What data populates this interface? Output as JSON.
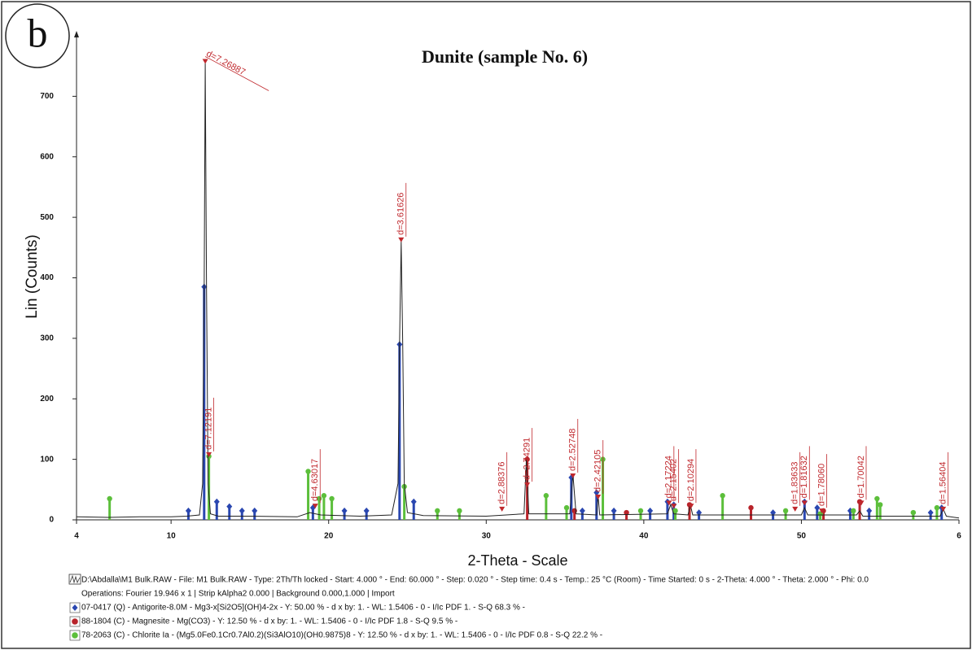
{
  "chart_data": {
    "type": "xrd",
    "panel_label": "b",
    "title": "Dunite (sample No. 6)",
    "x_label": "2-Theta - Scale",
    "y_label": "Lin (Counts)",
    "xlim": [
      4,
      60
    ],
    "ylim": [
      0,
      800
    ],
    "xticks": [
      4,
      10,
      20,
      30,
      40,
      50,
      {
        "value": 60,
        "label": "6"
      }
    ],
    "yticks": [
      0,
      100,
      200,
      300,
      400,
      500,
      600,
      700
    ],
    "pattern": {
      "color": "#222222",
      "x": [
        4,
        6,
        8,
        10,
        11,
        11.8,
        12.0,
        12.1,
        12.17,
        12.25,
        12.35,
        12.5,
        13,
        15,
        18,
        18.8,
        19.5,
        22,
        24,
        24.4,
        24.5,
        24.6,
        24.7,
        24.8,
        25,
        26,
        30,
        32.4,
        32.55,
        32.7,
        35.3,
        35.5,
        35.7,
        37.0,
        37.1,
        37.2,
        41.5,
        41.7,
        41.9,
        42.8,
        42.95,
        43.1,
        50.0,
        50.2,
        50.4,
        53.5,
        53.7,
        53.9,
        58.8,
        59.0,
        59.2,
        60
      ],
      "y": [
        5,
        4,
        5,
        5,
        6,
        8,
        60,
        380,
        755,
        380,
        60,
        10,
        6,
        6,
        5,
        12,
        8,
        6,
        8,
        60,
        290,
        460,
        290,
        60,
        12,
        7,
        6,
        10,
        100,
        10,
        10,
        75,
        10,
        8,
        40,
        8,
        10,
        25,
        10,
        8,
        25,
        8,
        8,
        20,
        8,
        8,
        15,
        6,
        6,
        18,
        6,
        3
      ]
    },
    "file_info": "D:\\Abdalla\\M1 Bulk.RAW - File: M1 Bulk.RAW - Type: 2Th/Th locked - Start: 4.000 ° - End: 60.000 ° - Step: 0.020 ° - Step time: 0.4 s - Temp.: 25 °C (Room) - Time Started: 0 s - 2-Theta: 4.000 ° - Theta: 2.000 ° - Phi: 0.0",
    "operations": "Operations: Fourier 19.946 x 1 | Strip kAlpha2 0.000 | Background 0.000,1.000 | Import",
    "series": [
      {
        "name": "07-0417 (Q) - Antigorite-8.0M - Mg3-x[Si2O5](OH)4-2x - Y: 50.00 % - d x by: 1. - WL: 1.5406 - 0 - I/Ic PDF 1. - S-Q 68.3 % -",
        "color": "#2a47b0",
        "marker": "diamond",
        "x": [
          11.1,
          12.1,
          12.9,
          13.7,
          14.5,
          15.3,
          19.0,
          21.0,
          22.4,
          24.5,
          25.4,
          35.4,
          36.1,
          37.0,
          38.1,
          40.4,
          41.5,
          41.9,
          43.5,
          48.2,
          50.2,
          51.0,
          53.1,
          54.3,
          58.2,
          58.9
        ],
        "values": [
          15,
          385,
          30,
          22,
          15,
          15,
          20,
          15,
          15,
          290,
          30,
          70,
          15,
          45,
          15,
          15,
          30,
          25,
          12,
          12,
          30,
          20,
          15,
          15,
          12,
          20
        ]
      },
      {
        "name": "88-1804 (C) - Magnesite - Mg(CO3) - Y: 12.50 % - d x by: 1. - WL: 1.5406 - 0 - I/Ic PDF 1.8 - S-Q 9.5 % -",
        "color": "#b8232a",
        "marker": "circle",
        "x": [
          32.6,
          35.6,
          38.9,
          42.9,
          46.8,
          51.4,
          53.7
        ],
        "values": [
          100,
          15,
          12,
          25,
          20,
          15,
          30
        ]
      },
      {
        "name": "78-2063 (C) - Chlorite Ia - (Mg5.0Fe0.1Cr0.7Al0.2)(Si3AlO10)(OH0.9875)8 - Y: 12.50 % - d x by: 1. - WL: 1.5406 - 0 - I/Ic PDF 0.8 - S-Q 22.2 % -",
        "color": "#5cbf3b",
        "marker": "circle",
        "x": [
          6.1,
          12.4,
          18.7,
          19.4,
          19.7,
          20.2,
          24.8,
          26.9,
          28.3,
          33.8,
          35.1,
          37.4,
          39.8,
          42.0,
          45.0,
          49.0,
          51.2,
          53.3,
          54.8,
          55.0,
          57.1,
          58.6
        ],
        "values": [
          35,
          105,
          80,
          35,
          40,
          35,
          55,
          15,
          15,
          40,
          20,
          100,
          15,
          15,
          40,
          15,
          10,
          15,
          35,
          25,
          12,
          20
        ]
      }
    ],
    "annotations": [
      {
        "x": 12.17,
        "y": 755,
        "label": "d=7.26887"
      },
      {
        "x": 12.4,
        "y": 105,
        "label": "d=7.12191"
      },
      {
        "x": 19.15,
        "y": 20,
        "label": "d=4.63017"
      },
      {
        "x": 24.6,
        "y": 460,
        "label": "d=3.61626"
      },
      {
        "x": 31.0,
        "y": 15,
        "label": "d=2.88376"
      },
      {
        "x": 32.6,
        "y": 55,
        "label": "d=2.74291"
      },
      {
        "x": 35.5,
        "y": 70,
        "label": "d=2.52748"
      },
      {
        "x": 37.1,
        "y": 35,
        "label": "d=2.42105"
      },
      {
        "x": 41.6,
        "y": 25,
        "label": "d=2.17224"
      },
      {
        "x": 41.9,
        "y": 20,
        "label": "d=2.15402"
      },
      {
        "x": 43.0,
        "y": 20,
        "label": "d=2.10294"
      },
      {
        "x": 49.6,
        "y": 15,
        "label": "d=1.83633"
      },
      {
        "x": 50.2,
        "y": 25,
        "label": "d=1.81632"
      },
      {
        "x": 51.3,
        "y": 12,
        "label": "d=1.78060"
      },
      {
        "x": 53.8,
        "y": 25,
        "label": "d=1.70042"
      },
      {
        "x": 59.0,
        "y": 15,
        "label": "d=1.56404"
      }
    ]
  }
}
